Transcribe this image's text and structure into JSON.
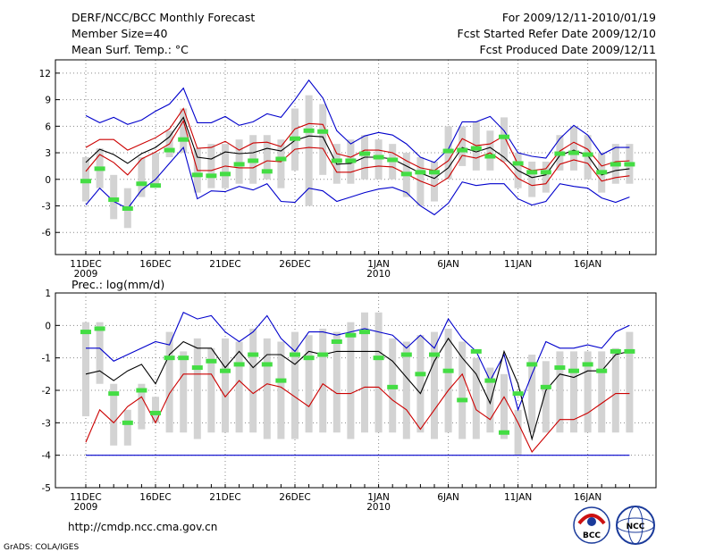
{
  "header": {
    "title": "DERF/NCC/BCC Monthly Forecast",
    "member_size": "Member Size=40",
    "variable": "Mean Surf. Temp.: °C",
    "period": "For 2009/12/11-2010/01/19",
    "fcst_started": "Fcst Started Refer Date 2009/12/10",
    "fcst_produced": "Fcst Produced Date 2009/12/11"
  },
  "footer": {
    "url": "http://cmdp.ncc.cma.gov.cn",
    "grads": "GrADS: COLA/IGES",
    "logo_bcc": "BCC",
    "logo_ncc": "NCC"
  },
  "colors": {
    "envelope": "#0000cc",
    "spread": "#cc0000",
    "ensemble_mean": "#000000",
    "observed": "#44dd44",
    "boxes": "#d3d3d3",
    "grid": "#888888"
  },
  "chart_data": [
    {
      "id": "temperature",
      "type": "line",
      "title": "Mean Surf. Temp.: °C",
      "xlabel": "",
      "ylabel": "",
      "ylim": [
        -8.5,
        13.5
      ],
      "yticks": [
        -6,
        -3,
        0,
        3,
        6,
        9,
        12
      ],
      "days": 40,
      "x_tick_labels": [
        {
          "day": 0,
          "label": "11DEC",
          "sub": "2009"
        },
        {
          "day": 5,
          "label": "16DEC",
          "sub": ""
        },
        {
          "day": 10,
          "label": "21DEC",
          "sub": ""
        },
        {
          "day": 15,
          "label": "26DEC",
          "sub": ""
        },
        {
          "day": 21,
          "label": "1JAN",
          "sub": "2010"
        },
        {
          "day": 26,
          "label": "6JAN",
          "sub": ""
        },
        {
          "day": 31,
          "label": "11JAN",
          "sub": ""
        },
        {
          "day": 36,
          "label": "16JAN",
          "sub": ""
        }
      ],
      "series": [
        {
          "name": "max",
          "values": [
            7.2,
            6.4,
            7.0,
            6.2,
            6.7,
            7.7,
            8.5,
            10.3,
            6.4,
            6.4,
            7.1,
            6.1,
            6.5,
            7.4,
            7.0,
            9.0,
            11.2,
            9.2,
            5.5,
            4.0,
            4.9,
            5.3,
            5.0,
            4.0,
            2.5,
            1.9,
            3.4,
            6.5,
            6.5,
            7.1,
            5.5,
            3.0,
            2.6,
            2.4,
            4.6,
            6.1,
            5.0,
            2.8,
            3.6,
            3.6
          ]
        },
        {
          "name": "spread_high",
          "values": [
            3.6,
            4.5,
            4.5,
            3.3,
            4.0,
            4.7,
            5.7,
            8.0,
            3.5,
            3.6,
            4.3,
            3.3,
            4.1,
            4.2,
            3.7,
            5.7,
            6.3,
            6.2,
            2.9,
            2.5,
            3.3,
            3.3,
            3.0,
            2.1,
            1.3,
            1.0,
            2.1,
            4.6,
            3.8,
            4.0,
            4.9,
            1.7,
            1.0,
            1.2,
            3.2,
            4.2,
            3.4,
            1.5,
            2.0,
            2.1
          ]
        },
        {
          "name": "mean",
          "values": [
            1.9,
            3.4,
            2.8,
            1.8,
            2.9,
            3.6,
            4.8,
            7.0,
            2.5,
            2.3,
            3.1,
            2.9,
            3.0,
            3.5,
            3.2,
            4.4,
            4.9,
            4.8,
            1.7,
            1.8,
            2.5,
            2.5,
            2.3,
            1.5,
            0.7,
            0.1,
            1.3,
            3.6,
            3.1,
            3.6,
            2.5,
            1.0,
            0.2,
            0.5,
            2.7,
            3.3,
            2.7,
            0.5,
            1.0,
            1.2
          ]
        },
        {
          "name": "spread_low",
          "values": [
            0.9,
            2.8,
            1.9,
            0.5,
            2.3,
            3.1,
            4.0,
            6.6,
            1.0,
            1.0,
            1.5,
            1.3,
            1.3,
            2.1,
            2.0,
            3.4,
            3.6,
            3.5,
            0.8,
            0.8,
            1.3,
            1.5,
            1.4,
            0.6,
            -0.2,
            -0.8,
            0.2,
            2.7,
            2.4,
            3.0,
            1.9,
            0.1,
            -0.7,
            -0.5,
            1.7,
            2.2,
            1.8,
            -0.2,
            0.2,
            0.4
          ]
        },
        {
          "name": "min",
          "values": [
            -2.9,
            -1.0,
            -2.5,
            -3.3,
            -1.2,
            0.0,
            1.8,
            3.6,
            -2.2,
            -1.3,
            -1.4,
            -0.8,
            -1.2,
            -0.5,
            -2.5,
            -2.6,
            -1.0,
            -1.3,
            -2.5,
            -2.0,
            -1.5,
            -1.1,
            -0.9,
            -1.5,
            -3.0,
            -4.0,
            -2.7,
            -0.3,
            -0.7,
            -0.5,
            -0.5,
            -2.2,
            -2.9,
            -2.5,
            -0.5,
            -0.8,
            -1.0,
            -2.1,
            -2.6,
            -2.0
          ]
        }
      ],
      "observed": [
        -0.2,
        1.2,
        -2.3,
        -3.3,
        -0.5,
        -0.7,
        3.3,
        4.5,
        0.5,
        0.4,
        0.6,
        1.7,
        2.1,
        0.9,
        2.3,
        4.6,
        5.5,
        5.4,
        2.1,
        2.1,
        2.9,
        2.5,
        2.2,
        0.6,
        0.8,
        0.8,
        3.2,
        3.3,
        3.5,
        2.6,
        4.8,
        1.8,
        0.8,
        0.8,
        2.9,
        3.0,
        2.8,
        0.8,
        1.7,
        1.7
      ],
      "boxes": [
        [
          -2.5,
          2.5
        ],
        [
          -1.0,
          3.5
        ],
        [
          -4.5,
          0.5
        ],
        [
          -5.5,
          -1.0
        ],
        [
          -2.0,
          2.5
        ],
        [
          -0.5,
          3.0
        ],
        [
          2.5,
          5.5
        ],
        [
          3.0,
          8.0
        ],
        [
          -1.5,
          3.5
        ],
        [
          -1.0,
          4.0
        ],
        [
          -1.0,
          4.0
        ],
        [
          -0.5,
          4.5
        ],
        [
          -0.5,
          5.0
        ],
        [
          0.0,
          5.0
        ],
        [
          -1.0,
          4.5
        ],
        [
          1.0,
          8.0
        ],
        [
          -3.0,
          9.5
        ],
        [
          0.5,
          8.5
        ],
        [
          -0.5,
          4.0
        ],
        [
          -0.5,
          4.5
        ],
        [
          0.0,
          5.0
        ],
        [
          0.0,
          4.5
        ],
        [
          0.0,
          4.0
        ],
        [
          -2.0,
          3.0
        ],
        [
          -3.0,
          2.5
        ],
        [
          -2.5,
          2.0
        ],
        [
          0.0,
          6.0
        ],
        [
          1.5,
          6.0
        ],
        [
          1.0,
          6.5
        ],
        [
          1.0,
          5.5
        ],
        [
          2.0,
          7.0
        ],
        [
          -1.0,
          3.0
        ],
        [
          -2.0,
          2.0
        ],
        [
          -1.5,
          2.0
        ],
        [
          1.0,
          5.0
        ],
        [
          1.0,
          6.0
        ],
        [
          0.0,
          5.0
        ],
        [
          -1.5,
          3.0
        ],
        [
          -0.5,
          4.0
        ],
        [
          -0.5,
          4.0
        ]
      ]
    },
    {
      "id": "precipitation",
      "type": "line",
      "title": "Prec.: log(mm/d)",
      "xlabel": "",
      "ylabel": "",
      "ylim": [
        -5,
        1
      ],
      "yticks": [
        -5,
        -4,
        -3,
        -2,
        -1,
        0,
        1
      ],
      "days": 40,
      "x_tick_labels": [
        {
          "day": 0,
          "label": "11DEC",
          "sub": "2009"
        },
        {
          "day": 5,
          "label": "16DEC",
          "sub": ""
        },
        {
          "day": 10,
          "label": "21DEC",
          "sub": ""
        },
        {
          "day": 15,
          "label": "26DEC",
          "sub": ""
        },
        {
          "day": 21,
          "label": "1JAN",
          "sub": "2010"
        },
        {
          "day": 26,
          "label": "6JAN",
          "sub": ""
        },
        {
          "day": 31,
          "label": "11JAN",
          "sub": ""
        },
        {
          "day": 36,
          "label": "16JAN",
          "sub": ""
        }
      ],
      "series": [
        {
          "name": "max",
          "values": [
            -0.7,
            -0.7,
            -1.1,
            -0.9,
            -0.7,
            -0.5,
            -0.6,
            0.4,
            0.2,
            0.3,
            -0.2,
            -0.5,
            -0.2,
            0.3,
            -0.4,
            -0.8,
            -0.2,
            -0.2,
            -0.3,
            -0.2,
            -0.1,
            -0.2,
            -0.3,
            -0.7,
            -0.3,
            -0.7,
            0.2,
            -0.4,
            -0.8,
            -1.7,
            -0.9,
            -2.6,
            -1.5,
            -0.5,
            -0.7,
            -0.7,
            -0.6,
            -0.7,
            -0.2,
            0.0
          ]
        },
        {
          "name": "mean",
          "values": [
            -1.5,
            -1.4,
            -1.7,
            -1.4,
            -1.2,
            -1.8,
            -0.9,
            -0.5,
            -0.7,
            -0.7,
            -1.3,
            -0.8,
            -1.3,
            -0.9,
            -0.9,
            -1.2,
            -0.8,
            -0.9,
            -0.8,
            -0.8,
            -0.8,
            -0.8,
            -1.1,
            -1.6,
            -2.1,
            -1.1,
            -0.4,
            -1.0,
            -1.5,
            -2.4,
            -0.8,
            -1.8,
            -3.5,
            -2.0,
            -1.5,
            -1.6,
            -1.4,
            -1.4,
            -0.9,
            -0.8
          ]
        },
        {
          "name": "spread_low",
          "values": [
            -3.6,
            -2.6,
            -3.0,
            -2.5,
            -2.2,
            -3.0,
            -2.1,
            -1.5,
            -1.5,
            -1.5,
            -2.2,
            -1.7,
            -2.1,
            -1.8,
            -1.9,
            -2.2,
            -2.5,
            -1.8,
            -2.1,
            -2.1,
            -1.9,
            -1.9,
            -2.3,
            -2.6,
            -3.2,
            -2.6,
            -2.0,
            -1.5,
            -2.6,
            -2.9,
            -2.2,
            -3.0,
            -3.9,
            -3.4,
            -2.9,
            -2.9,
            -2.7,
            -2.4,
            -2.1,
            -2.1
          ]
        },
        {
          "name": "min",
          "values": [
            -4.0,
            -4.0,
            -4.0,
            -4.0,
            -4.0,
            -4.0,
            -4.0,
            -4.0,
            -4.0,
            -4.0,
            -4.0,
            -4.0,
            -4.0,
            -4.0,
            -4.0,
            -4.0,
            -4.0,
            -4.0,
            -4.0,
            -4.0,
            -4.0,
            -4.0,
            -4.0,
            -4.0,
            -4.0,
            -4.0,
            -4.0,
            -4.0,
            -4.0,
            -4.0,
            -4.0,
            -4.0,
            -4.0,
            -4.0,
            -4.0,
            -4.0,
            -4.0,
            -4.0,
            -4.0,
            -4.0
          ]
        }
      ],
      "observed": [
        -0.2,
        -0.1,
        -2.1,
        -3.0,
        -2.0,
        -2.7,
        -1.0,
        -1.0,
        -1.3,
        -1.1,
        -1.4,
        -1.2,
        -0.9,
        -1.2,
        -1.7,
        -0.9,
        -1.0,
        -0.9,
        -0.5,
        -0.3,
        -0.2,
        -1.0,
        -1.9,
        -0.9,
        -1.5,
        -0.9,
        -1.4,
        -2.3,
        -0.8,
        -1.7,
        -3.3,
        -2.1,
        -1.2,
        -1.9,
        -1.3,
        -1.4,
        -1.2,
        -1.4,
        -0.8,
        -0.8
      ],
      "boxes": [
        [
          -2.8,
          0.1
        ],
        [
          -1.8,
          0.1
        ],
        [
          -3.7,
          -1.8
        ],
        [
          -3.7,
          -2.6
        ],
        [
          -3.2,
          -1.8
        ],
        [
          -3.0,
          -2.2
        ],
        [
          -3.3,
          -0.2
        ],
        [
          -3.3,
          -0.8
        ],
        [
          -3.5,
          -0.4
        ],
        [
          -3.3,
          -0.7
        ],
        [
          -3.3,
          -0.4
        ],
        [
          -3.3,
          -0.5
        ],
        [
          -3.3,
          -0.1
        ],
        [
          -3.5,
          -0.4
        ],
        [
          -3.5,
          -0.5
        ],
        [
          -3.5,
          -0.2
        ],
        [
          -3.3,
          -0.3
        ],
        [
          -3.3,
          -0.1
        ],
        [
          -3.3,
          -0.2
        ],
        [
          -3.5,
          0.1
        ],
        [
          -3.3,
          0.4
        ],
        [
          -3.3,
          0.4
        ],
        [
          -3.3,
          -0.4
        ],
        [
          -3.5,
          -0.5
        ],
        [
          -3.3,
          -0.3
        ],
        [
          -3.5,
          -0.2
        ],
        [
          -3.3,
          -0.1
        ],
        [
          -3.5,
          -0.5
        ],
        [
          -3.5,
          -1.0
        ],
        [
          -3.3,
          -1.3
        ],
        [
          -3.5,
          -1.5
        ],
        [
          -4.0,
          -2.6
        ],
        [
          -3.3,
          -0.9
        ],
        [
          -3.3,
          -1.1
        ],
        [
          -3.3,
          -0.8
        ],
        [
          -3.3,
          -0.8
        ],
        [
          -3.3,
          -0.8
        ],
        [
          -3.3,
          -0.8
        ],
        [
          -3.3,
          -0.7
        ],
        [
          -3.3,
          -0.2
        ]
      ]
    }
  ]
}
